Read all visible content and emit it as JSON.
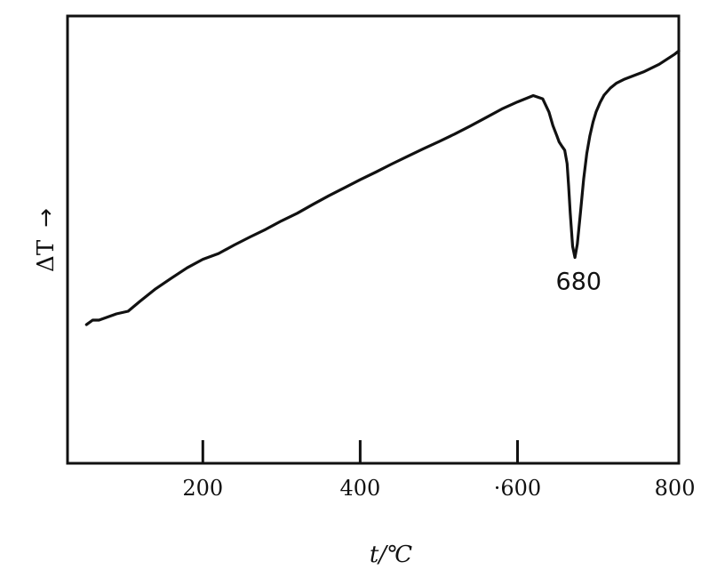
{
  "chart_data": {
    "type": "line",
    "title": "",
    "xlabel": "t/℃",
    "ylabel": "ΔT",
    "ylabel_arrow": "→",
    "xlim": [
      28,
      805
    ],
    "ylim": [
      0,
      100
    ],
    "x_ticks": [
      200,
      400,
      600,
      800
    ],
    "x_tick_labels": [
      "200",
      "400",
      "·600",
      "800"
    ],
    "grid": false,
    "legend": "none",
    "line_color": "#111111",
    "series": [
      {
        "x": [
          52,
          60,
          68,
          90,
          105,
          120,
          140,
          160,
          180,
          200,
          220,
          240,
          260,
          280,
          300,
          320,
          340,
          360,
          380,
          400,
          420,
          440,
          460,
          480,
          500,
          520,
          540,
          560,
          580,
          600,
          620,
          632,
          640,
          645,
          650,
          653,
          656,
          660,
          663,
          665,
          667,
          670,
          673,
          676,
          680,
          684,
          688,
          692,
          696,
          700,
          705,
          710,
          718,
          726,
          735,
          760,
          780,
          800,
          805
        ],
        "values": [
          31,
          32,
          32,
          33.4,
          34,
          36.2,
          39,
          41.4,
          43.7,
          45.6,
          46.9,
          48.8,
          50.6,
          52.3,
          54.2,
          55.9,
          57.9,
          59.8,
          61.6,
          63.4,
          65.1,
          66.9,
          68.6,
          70.3,
          71.9,
          73.6,
          75.4,
          77.3,
          79.2,
          80.8,
          82.2,
          81.5,
          78.5,
          75.5,
          73.2,
          71.8,
          71,
          70,
          67,
          62,
          56,
          48.5,
          46,
          49,
          56,
          63.5,
          69.2,
          73.2,
          76.3,
          78.6,
          80.7,
          82.3,
          83.9,
          85,
          85.8,
          87.5,
          89.2,
          91.5,
          92.2
        ]
      }
    ],
    "annotations": [
      {
        "text": "680",
        "x": 680,
        "y": 46
      }
    ]
  }
}
